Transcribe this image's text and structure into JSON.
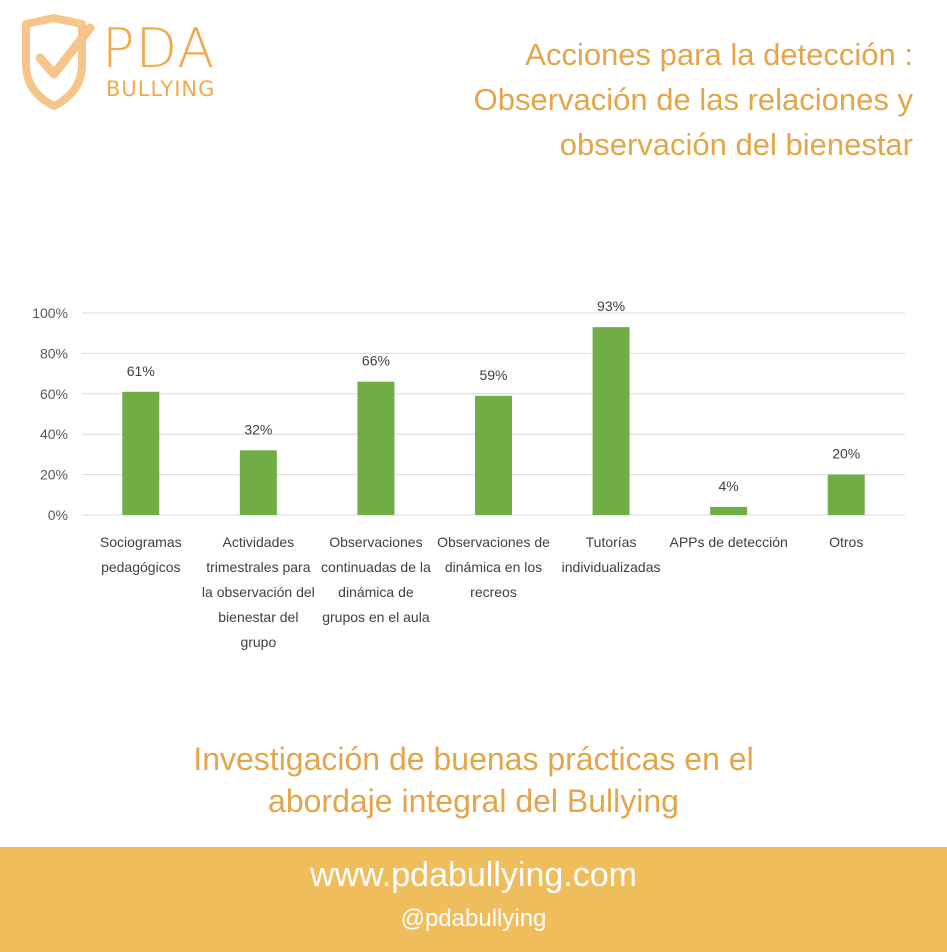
{
  "logo": {
    "icon": "shield-check-icon",
    "line1": "PDA",
    "line2": "BULLYING"
  },
  "title": {
    "line1": "Acciones para la detección :",
    "line2": "Observación de las relaciones y",
    "line3": "observación del bienestar"
  },
  "colors": {
    "accent": "#e3a547",
    "bar": "#70ad47",
    "footer": "#efbd5c",
    "grid": "#d9d9d9"
  },
  "chart_data": {
    "type": "bar",
    "categories": [
      [
        "Sociogramas",
        "pedagógicos"
      ],
      [
        "Actividades",
        "trimestrales para",
        "la observación del",
        "bienestar del",
        "grupo"
      ],
      [
        "Observaciones",
        "continuadas de la",
        "dinámica de",
        "grupos en el aula"
      ],
      [
        "Observaciones de",
        "dinámica en los",
        "recreos"
      ],
      [
        "Tutorías",
        "individualizadas"
      ],
      [
        "APPs de detección"
      ],
      [
        "Otros"
      ]
    ],
    "values": [
      61,
      32,
      66,
      59,
      93,
      4,
      20
    ],
    "data_labels": [
      "61%",
      "32%",
      "66%",
      "59%",
      "93%",
      "4%",
      "20%"
    ],
    "yticks": [
      "0%",
      "20%",
      "40%",
      "60%",
      "80%",
      "100%"
    ],
    "ylim": [
      0,
      100
    ],
    "grid": true,
    "legend": "none"
  },
  "subtitle": {
    "line1": "Investigación de buenas prácticas en el",
    "line2": "abordaje integral del Bullying"
  },
  "footer": {
    "url": "www.pdabullying.com",
    "handle": "@pdabullying"
  }
}
